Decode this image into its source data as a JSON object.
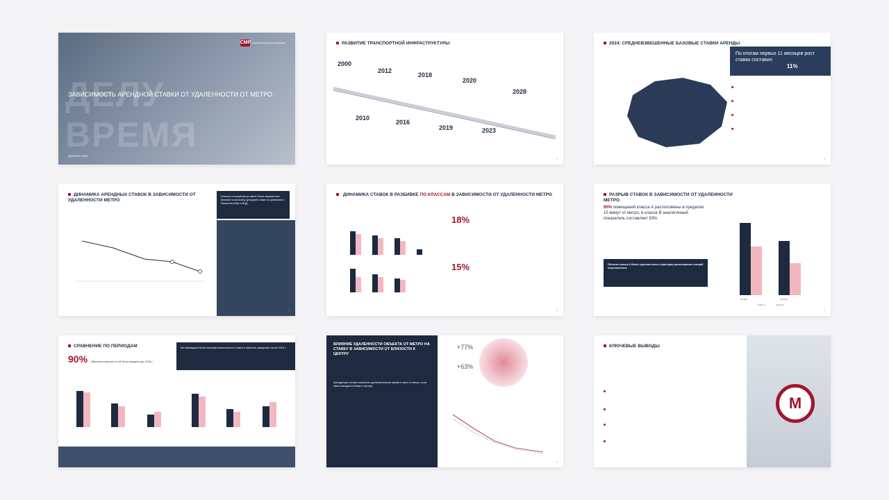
{
  "slide1": {
    "title": "ЗАВИСИМОСТЬ АРЕНДНОЙ СТАВКИ ОТ УДАЛЕННОСТИ ОТ МЕТРО",
    "watermark1": "ДЕЛУ",
    "watermark2": "ВРЕМЯ",
    "date": "ДЕКАБРЬ 2024",
    "logo_text": "COMMONWEALTH PARTNERSHIP",
    "logo_mark": "CMP"
  },
  "slide2": {
    "title": "РАЗВИТИЕ ТРАНСПОРТНОЙ ИНФРАСТРУКТУРЫ",
    "years_top": [
      "2000",
      "2012",
      "2018",
      "2020",
      "2028"
    ],
    "years_bottom": [
      "2010",
      "2016",
      "2019",
      "2023"
    ],
    "page": "2"
  },
  "slide3": {
    "title": "2024: СРЕДНЕВЗВЕШЕННЫЕ БАЗОВЫЕ СТАВКИ АРЕНДЫ",
    "highlight_text": "По итогам первых 11 месяцев рост ставки составил",
    "highlight_value": "11%",
    "page": "3"
  },
  "slide4": {
    "title": "ДИНАМИКА АРЕНДНЫХ СТАВОК В ЗАВИСИМОСТИ ОТ УДАЛЕННОСТИ МЕТРО",
    "side_text": "Близость станций метро имеет более выраженное влияние на величину арендной ставки по сравнению с близостью МЦК и МЦД",
    "page": "4"
  },
  "slide5": {
    "title": "ДИНАМИКА СТАВОК В РАЗБИВКЕ",
    "title_accent": "ПО КЛАССАМ",
    "title_end": "В ЗАВИСИМОСТИ ОТ УДАЛЕННОСТИ МЕТРО",
    "stat1": "18%",
    "stat2": "15%",
    "page": "5"
  },
  "slide6": {
    "title": "РАЗРЫВ СТАВОК В ЗАВИСИМОСТИ ОТ УДАЛЕННОСТИ МЕТРО",
    "lead_value": "90%",
    "lead_text": "помещений класса А расположены в пределах 15 минут от метро, в классе В аналогичный показатель составляет 83%",
    "dark_text": "Объекты класса А более чувствительны к факторам расположения станций метрополитена",
    "legend": [
      "Класс А",
      "Класс В"
    ],
    "categories": [
      "<15 мин",
      "<15 мин"
    ],
    "page": "6"
  },
  "slide7": {
    "title": "СРАВНЕНИЕ ПО ПЕРИОДАМ",
    "lead_value": "90%",
    "lead_text": "объектов классов А и В было введено до 2018 г.",
    "dark_text": "Мы наблюдаем более высокую волатильность ставок в объектах, введенных после 2018 г.",
    "page": "7"
  },
  "slide8": {
    "title": "ВЛИЯНИЕ УДАЛЕННОСТИ ОБЪЕКТА ОТ МЕТРО НА СТАВКУ В ЗАВИСИМОСТИ ОТ БЛИЗОСТИ К ЦЕНТРУ",
    "stat1": "+77%",
    "stat2": "+63%",
    "lead_text": "Арендаторы готовы потратить дополнительное время в пути от метро, если офис находится ближе к центру",
    "page": "8"
  },
  "slide9": {
    "title": "КЛЮЧЕВЫЕ ВЫВОДЫ",
    "metro_letter": "М",
    "page": "9"
  },
  "colors": {
    "navy": "#1d2a3f",
    "accent": "#a0162c",
    "pink": "#f3b7c2"
  }
}
